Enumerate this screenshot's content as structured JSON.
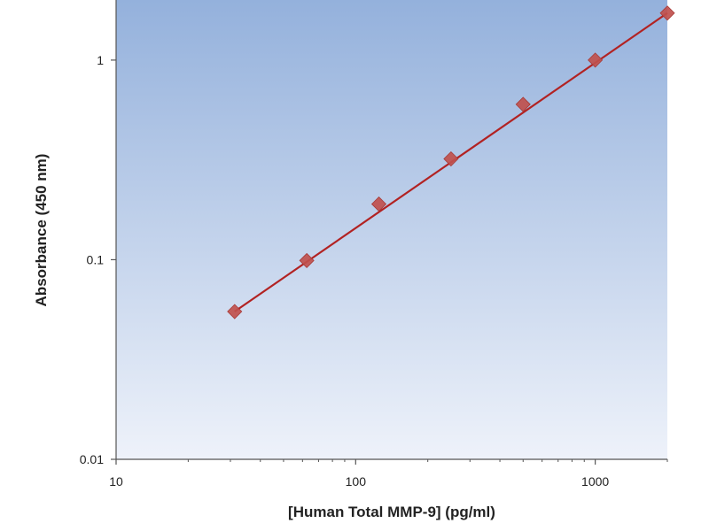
{
  "chart_data": {
    "type": "scatter",
    "xlabel": "[Human Total MMP-9] (pg/ml)",
    "ylabel": "Absorbance (450 nm)",
    "xscale": "log",
    "yscale": "log",
    "xlim": [
      10,
      2000
    ],
    "ylim": [
      0.01,
      2
    ],
    "x_ticks": [
      {
        "value": 10,
        "label": "10"
      },
      {
        "value": 100,
        "label": "100"
      },
      {
        "value": 1000,
        "label": "1000"
      }
    ],
    "y_ticks": [
      {
        "value": 0.01,
        "label": "0.01"
      },
      {
        "value": 0.1,
        "label": "0.1"
      },
      {
        "value": 1,
        "label": "1"
      }
    ],
    "grid": false,
    "legend": "none",
    "series": [
      {
        "x": [
          31.25,
          62.5,
          125,
          250,
          500,
          1000,
          2000
        ],
        "y": [
          0.055,
          0.099,
          0.19,
          0.32,
          0.6,
          1.0,
          1.72
        ]
      }
    ],
    "fit_line": {
      "x": [
        31.25,
        2000
      ],
      "y": [
        0.055,
        1.72
      ]
    },
    "colors": {
      "marker": "#c0504d",
      "fit_line": "#b22222",
      "plot_bg_top": "#94b1dc",
      "plot_bg_bottom": "#eef2fa",
      "axis": "#555555"
    }
  }
}
